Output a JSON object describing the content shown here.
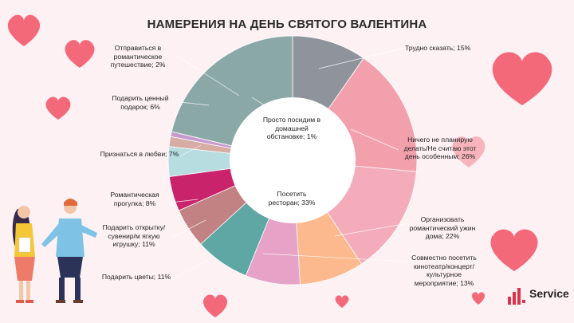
{
  "chart_data": {
    "type": "pie",
    "variant": "donut",
    "title": "НАМЕРЕНИЯ НА ДЕНЬ СВЯТОГО ВАЛЕНТИНА",
    "slices": [
      {
        "label": "Трудно  сказать; 15%",
        "value": 15,
        "color": "#8f939b"
      },
      {
        "label": "Ничего не планирую делать/Не считаю этот день особенным; 26%",
        "value": 26,
        "color": "#f3a0ad"
      },
      {
        "label": "Организовать романтический ужин дома; 22%",
        "value": 22,
        "color": "#f4abba"
      },
      {
        "label": "Совместно посетить кинотеатр/концерт/культурное мероприятие;  13%",
        "value": 13,
        "color": "#fcb98d"
      },
      {
        "label": "Подарить цветы; 11%",
        "value": 11,
        "color": "#e6a2c7"
      },
      {
        "label": "Подарить открытку/сувенир/мягкую игрушку;  11%",
        "value": 11,
        "color": "#5fa7a4"
      },
      {
        "label": "Романтическая прогулка;  8%",
        "value": 8,
        "color": "#c28284"
      },
      {
        "label": "Признаться в любви; 7%",
        "value": 7,
        "color": "#c8236b"
      },
      {
        "label": "Подарить ценный подарок; 6%",
        "value": 6,
        "color": "#b7dde0"
      },
      {
        "label": "Отправиться в романтическое путешествие;  2%",
        "value": 2,
        "color": "#d6aca4"
      },
      {
        "label": "Просто посидим в домашней обстановке; 1%",
        "value": 1,
        "color": "#c89bd0"
      },
      {
        "label": "Посетить ресторан; 33%",
        "value": 33,
        "color": "#8aa9a6"
      }
    ]
  },
  "labels": {
    "l_trudno": "Трудно  сказать; 15%",
    "l_nichego": "Ничего не планирую делать/Не считаю этот день особенным; 26%",
    "l_uzhin": "Организовать романтический  ужин дома; 22%",
    "l_kino": "Совместно посетить кинотеатр/концерт/ культурное мероприятие;  13%",
    "l_cvety": "Подарить цветы; 11%",
    "l_otkrytka": "Подарить открытку/сувенир/м ягкую игрушку;  11%",
    "l_progulka": "Романтическая прогулка;  8%",
    "l_priznatsya": "Признаться в любви; 7%",
    "l_podarok": "Подарить ценный подарок; 6%",
    "l_puteshestvie": "Отправиться в романтическое путешествие;  2%",
    "l_doma": "Просто посидим в домашней обстановке; 1%",
    "l_restoran": "Посетить ресторан; 33%"
  },
  "brand": {
    "logo_text": "Service",
    "accent": "#e0304a"
  }
}
